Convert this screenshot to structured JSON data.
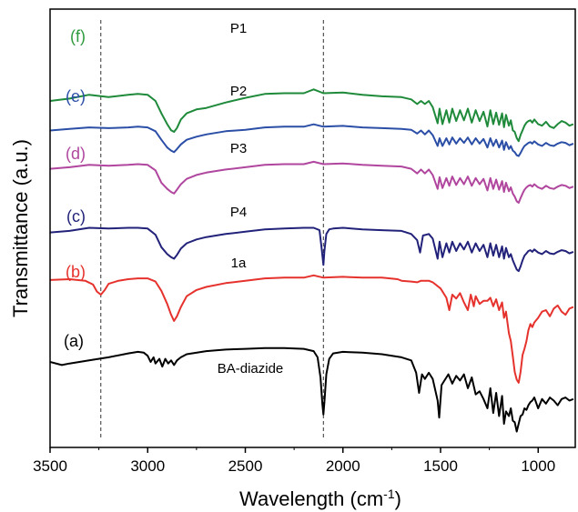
{
  "chart_data": {
    "type": "line",
    "xlabel": "Wavelength (cm",
    "xlabel_sup": "-1",
    "xlabel_end": ")",
    "ylabel": "Transmittance (a.u.)",
    "xlim": [
      3500,
      810
    ],
    "x_reversed": true,
    "x_ticks": [
      3500,
      3000,
      2500,
      2000,
      1500,
      1000
    ],
    "x_tick_labels": [
      "3500",
      "3000",
      "2500",
      "2000",
      "1500",
      "1000"
    ],
    "y_unit": "a.u.",
    "grid": false,
    "dashed_reference_lines_x": [
      3240,
      2100
    ],
    "series": [
      {
        "letter": "(f)",
        "name": "P1",
        "color": "#1e8a3a",
        "letter_color": "#2e9b3e",
        "x": [
          3500,
          3400,
          3300,
          3200,
          3100,
          3050,
          3000,
          2960,
          2930,
          2900,
          2880,
          2865,
          2850,
          2830,
          2800,
          2750,
          2700,
          2600,
          2500,
          2400,
          2300,
          2200,
          2150,
          2100,
          2000,
          1900,
          1800,
          1700,
          1650,
          1620,
          1600,
          1580,
          1560,
          1540,
          1515,
          1505,
          1490,
          1470,
          1455,
          1440,
          1420,
          1400,
          1380,
          1360,
          1340,
          1320,
          1300,
          1280,
          1260,
          1245,
          1230,
          1215,
          1200,
          1185,
          1175,
          1165,
          1150,
          1140,
          1130,
          1120,
          1110,
          1100,
          1090,
          1080,
          1070,
          1060,
          1050,
          1040,
          1030,
          1020,
          1000,
          980,
          960,
          940,
          920,
          900,
          880,
          860,
          840,
          820
        ],
        "y": [
          60,
          57,
          52,
          55,
          52,
          51,
          52,
          60,
          76,
          90,
          98,
          100,
          95,
          84,
          76,
          71,
          69,
          62,
          56,
          51,
          50,
          50,
          45,
          50,
          49,
          52,
          54,
          55,
          58,
          64,
          60,
          64,
          60,
          68,
          89,
          70,
          90,
          72,
          88,
          70,
          86,
          72,
          85,
          70,
          88,
          72,
          86,
          74,
          93,
          72,
          90,
          75,
          91,
          76,
          94,
          78,
          92,
          85,
          98,
          100,
          108,
          112,
          104,
          98,
          92,
          88,
          86,
          85,
          88,
          84,
          90,
          92,
          87,
          93,
          95,
          90,
          86,
          88,
          92,
          90
        ]
      },
      {
        "letter": "(e)",
        "name": "P2",
        "color": "#2b4ea6",
        "letter_color": "#2b4ea6",
        "x": [
          3500,
          3400,
          3300,
          3200,
          3100,
          3050,
          3000,
          2960,
          2930,
          2900,
          2880,
          2865,
          2850,
          2830,
          2800,
          2750,
          2700,
          2600,
          2500,
          2400,
          2300,
          2200,
          2150,
          2100,
          2000,
          1900,
          1800,
          1700,
          1650,
          1620,
          1600,
          1580,
          1560,
          1540,
          1515,
          1505,
          1490,
          1470,
          1455,
          1440,
          1420,
          1400,
          1380,
          1360,
          1340,
          1320,
          1300,
          1280,
          1260,
          1245,
          1230,
          1215,
          1200,
          1185,
          1175,
          1165,
          1150,
          1140,
          1130,
          1120,
          1110,
          1100,
          1090,
          1080,
          1070,
          1060,
          1050,
          1040,
          1030,
          1020,
          1000,
          980,
          960,
          940,
          920,
          900,
          880,
          860,
          840,
          820
        ],
        "y": [
          30,
          28,
          26,
          27,
          26,
          25,
          26,
          31,
          42,
          52,
          56,
          58,
          54,
          48,
          42,
          38,
          35,
          31,
          29,
          26,
          25,
          25,
          22,
          25,
          24,
          26,
          27,
          28,
          29,
          34,
          30,
          35,
          30,
          36,
          50,
          40,
          50,
          40,
          48,
          39,
          47,
          40,
          46,
          39,
          48,
          40,
          47,
          41,
          52,
          40,
          50,
          42,
          52,
          43,
          55,
          45,
          54,
          50,
          56,
          58,
          62,
          63,
          59,
          54,
          50,
          48,
          46,
          45,
          47,
          44,
          48,
          50,
          46,
          49,
          50,
          47,
          45,
          46,
          49,
          47
        ]
      },
      {
        "letter": "(d)",
        "name": "P3",
        "color": "#b0469e",
        "letter_color": "#b0469e",
        "x": [
          3500,
          3400,
          3300,
          3200,
          3100,
          3050,
          3000,
          2960,
          2930,
          2900,
          2880,
          2865,
          2850,
          2830,
          2800,
          2750,
          2700,
          2600,
          2500,
          2400,
          2300,
          2200,
          2150,
          2100,
          2000,
          1900,
          1800,
          1700,
          1650,
          1620,
          1600,
          1580,
          1560,
          1540,
          1515,
          1505,
          1490,
          1470,
          1455,
          1440,
          1420,
          1400,
          1380,
          1360,
          1340,
          1320,
          1300,
          1280,
          1260,
          1245,
          1230,
          1215,
          1200,
          1185,
          1175,
          1165,
          1150,
          1140,
          1130,
          1120,
          1110,
          1100,
          1090,
          1080,
          1070,
          1060,
          1050,
          1040,
          1030,
          1020,
          1000,
          980,
          960,
          940,
          920,
          900,
          880,
          860,
          840,
          820
        ],
        "y": [
          36,
          34,
          31,
          32,
          31,
          30,
          31,
          38,
          54,
          62,
          66,
          68,
          63,
          56,
          49,
          44,
          41,
          37,
          34,
          31,
          30,
          30,
          27,
          30,
          29,
          31,
          32,
          33,
          36,
          42,
          37,
          42,
          37,
          44,
          62,
          47,
          61,
          48,
          58,
          46,
          57,
          48,
          56,
          46,
          58,
          48,
          56,
          49,
          64,
          48,
          62,
          50,
          63,
          52,
          66,
          54,
          65,
          60,
          68,
          72,
          78,
          80,
          74,
          68,
          63,
          60,
          58,
          57,
          59,
          56,
          60,
          62,
          58,
          61,
          62,
          59,
          57,
          58,
          61,
          59
        ]
      },
      {
        "letter": "(c)",
        "name": "P4",
        "color": "#22227a",
        "letter_color": "#22227a",
        "x": [
          3500,
          3400,
          3300,
          3200,
          3100,
          3050,
          3000,
          2960,
          2930,
          2900,
          2880,
          2865,
          2850,
          2830,
          2800,
          2750,
          2700,
          2600,
          2500,
          2400,
          2300,
          2200,
          2150,
          2120,
          2110,
          2100,
          2095,
          2085,
          2070,
          2050,
          2000,
          1900,
          1800,
          1700,
          1650,
          1620,
          1605,
          1590,
          1560,
          1540,
          1515,
          1505,
          1490,
          1470,
          1455,
          1440,
          1420,
          1400,
          1380,
          1360,
          1340,
          1320,
          1300,
          1280,
          1260,
          1245,
          1230,
          1215,
          1200,
          1185,
          1175,
          1165,
          1150,
          1140,
          1130,
          1120,
          1110,
          1100,
          1090,
          1080,
          1070,
          1060,
          1050,
          1040,
          1030,
          1020,
          1000,
          980,
          960,
          940,
          920,
          900,
          880,
          860,
          840,
          820
        ],
        "y": [
          36,
          34,
          30,
          31,
          30,
          30,
          31,
          39,
          55,
          64,
          68,
          70,
          65,
          57,
          50,
          45,
          42,
          38,
          35,
          32,
          31,
          30,
          30,
          33,
          55,
          78,
          60,
          38,
          32,
          31,
          30,
          32,
          33,
          34,
          38,
          46,
          62,
          40,
          38,
          44,
          70,
          48,
          68,
          50,
          62,
          48,
          60,
          50,
          58,
          48,
          62,
          50,
          60,
          52,
          68,
          50,
          66,
          52,
          68,
          54,
          70,
          56,
          68,
          64,
          72,
          78,
          84,
          86,
          80,
          72,
          66,
          63,
          60,
          59,
          61,
          58,
          62,
          64,
          60,
          63,
          64,
          61,
          59,
          60,
          63,
          61
        ]
      },
      {
        "letter": "(b)",
        "name": "1a",
        "color": "#e6322d",
        "letter_color": "#e6322d",
        "x": [
          3500,
          3400,
          3320,
          3280,
          3260,
          3240,
          3220,
          3200,
          3150,
          3100,
          3050,
          3000,
          2960,
          2930,
          2900,
          2880,
          2865,
          2850,
          2830,
          2800,
          2750,
          2700,
          2600,
          2500,
          2400,
          2300,
          2200,
          2150,
          2100,
          2000,
          1900,
          1800,
          1720,
          1700,
          1650,
          1620,
          1600,
          1560,
          1540,
          1500,
          1470,
          1455,
          1440,
          1420,
          1400,
          1380,
          1360,
          1345,
          1330,
          1320,
          1300,
          1280,
          1260,
          1245,
          1230,
          1215,
          1200,
          1185,
          1175,
          1165,
          1150,
          1140,
          1130,
          1120,
          1110,
          1100,
          1090,
          1080,
          1070,
          1060,
          1050,
          1040,
          1030,
          1020,
          1000,
          980,
          960,
          940,
          920,
          900,
          880,
          860,
          840,
          820
        ],
        "y": [
          21,
          20,
          22,
          27,
          36,
          40,
          34,
          26,
          22,
          20,
          19,
          19,
          23,
          35,
          52,
          66,
          74,
          68,
          56,
          42,
          34,
          30,
          25,
          22,
          19,
          18,
          18,
          15,
          18,
          17,
          18,
          18,
          20,
          22,
          23,
          24,
          22,
          22,
          24,
          32,
          44,
          60,
          40,
          45,
          38,
          50,
          60,
          40,
          55,
          42,
          52,
          48,
          48,
          44,
          55,
          46,
          60,
          50,
          70,
          62,
          90,
          100,
          120,
          140,
          150,
          154,
          140,
          118,
          110,
          100,
          86,
          78,
          82,
          76,
          70,
          62,
          60,
          68,
          58,
          54,
          62,
          66,
          58,
          56
        ]
      },
      {
        "letter": "(a)",
        "name": "BA-diazide",
        "color": "#000000",
        "letter_color": "#000000",
        "x": [
          3500,
          3440,
          3400,
          3350,
          3300,
          3200,
          3100,
          3050,
          3020,
          3000,
          2985,
          2970,
          2960,
          2940,
          2925,
          2910,
          2895,
          2880,
          2865,
          2850,
          2830,
          2800,
          2700,
          2600,
          2500,
          2400,
          2300,
          2200,
          2150,
          2130,
          2115,
          2105,
          2100,
          2095,
          2085,
          2070,
          2050,
          2000,
          1900,
          1800,
          1700,
          1650,
          1625,
          1610,
          1595,
          1580,
          1560,
          1540,
          1515,
          1507,
          1495,
          1480,
          1460,
          1440,
          1420,
          1400,
          1380,
          1360,
          1340,
          1320,
          1300,
          1280,
          1260,
          1245,
          1230,
          1215,
          1200,
          1185,
          1175,
          1165,
          1150,
          1140,
          1130,
          1120,
          1110,
          1100,
          1090,
          1080,
          1070,
          1060,
          1050,
          1040,
          1030,
          1020,
          1000,
          980,
          960,
          940,
          920,
          900,
          880,
          860,
          840,
          820
        ],
        "y": [
          20,
          24,
          22,
          20,
          18,
          14,
          9,
          7,
          8,
          12,
          20,
          14,
          22,
          16,
          26,
          16,
          22,
          18,
          24,
          18,
          14,
          10,
          6,
          4,
          3,
          2,
          2,
          3,
          6,
          14,
          40,
          75,
          88,
          72,
          36,
          16,
          9,
          7,
          8,
          10,
          14,
          18,
          34,
          60,
          36,
          42,
          34,
          42,
          70,
          92,
          50,
          44,
          36,
          48,
          38,
          44,
          36,
          54,
          40,
          62,
          58,
          68,
          80,
          54,
          86,
          60,
          90,
          64,
          100,
          84,
          90,
          80,
          96,
          98,
          110,
          100,
          90,
          88,
          80,
          82,
          76,
          72,
          70,
          66,
          80,
          68,
          74,
          66,
          70,
          76,
          68,
          66,
          70,
          68
        ]
      }
    ]
  }
}
